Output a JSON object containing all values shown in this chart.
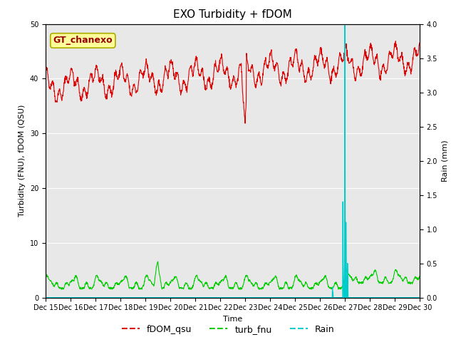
{
  "title": "EXO Turbidity + fDOM",
  "xlabel": "Time",
  "ylabel_left": "Turbidity (FNU), fDOM (QSU)",
  "ylabel_right": "Rain (mm)",
  "ylim_left": [
    0,
    50
  ],
  "ylim_right": [
    0,
    4.0
  ],
  "xlim": [
    0,
    15
  ],
  "xtick_labels": [
    "Dec 15",
    "Dec 16",
    "Dec 17",
    "Dec 18",
    "Dec 19",
    "Dec 20",
    "Dec 21",
    "Dec 22",
    "Dec 23",
    "Dec 24",
    "Dec 25",
    "Dec 26",
    "Dec 27",
    "Dec 28",
    "Dec 29",
    "Dec 30"
  ],
  "annotation_text": "GT_chanexo",
  "annotation_color": "#990000",
  "annotation_bg": "#ffff99",
  "fdom_color": "#dd0000",
  "turb_color": "#00cc00",
  "rain_color": "#00cccc",
  "bg_color": "#e8e8e8",
  "grid_color": "#ffffff",
  "title_fontsize": 11,
  "axis_fontsize": 8,
  "tick_fontsize": 7,
  "legend_fontsize": 9
}
